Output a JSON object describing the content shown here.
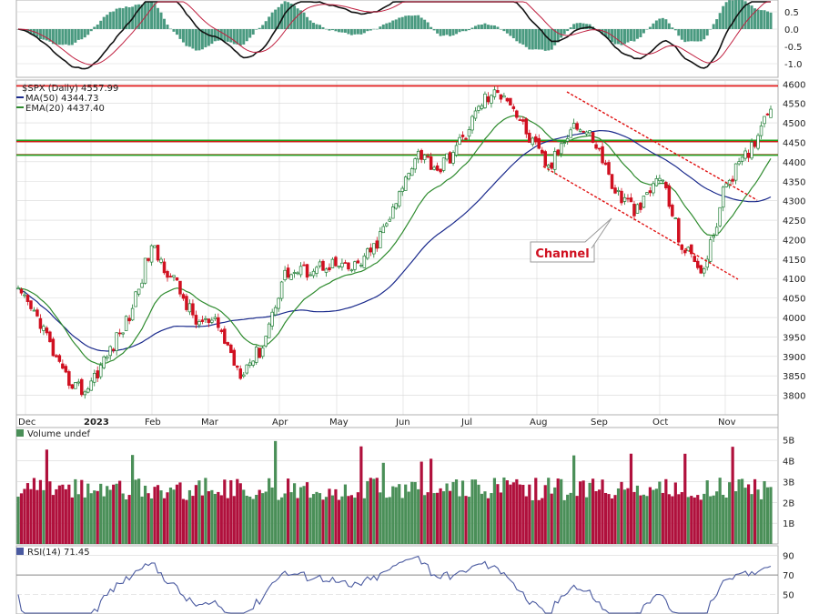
{
  "chart_data": {
    "type": "candlestick",
    "title": "$SPX (Daily) 4557.99",
    "legend": {
      "ma50": "MA(50) 4344.73",
      "ema20": "EMA(20) 4437.40"
    },
    "annotation": "Channel",
    "months": [
      "Dec",
      "2023",
      "Feb",
      "Mar",
      "Apr",
      "May",
      "Jun",
      "Jul",
      "Aug",
      "Sep",
      "Oct",
      "Nov"
    ],
    "price_ylim": [
      3750,
      4610
    ],
    "price_ticks": [
      "4600",
      "4550",
      "4500",
      "4450",
      "4400",
      "4350",
      "4300",
      "4250",
      "4200",
      "4150",
      "4100",
      "4050",
      "4000",
      "3950",
      "3900",
      "3850",
      "3800"
    ],
    "macd_ticks": [
      "0.5",
      "0.0",
      "-0.5",
      "-1.0"
    ],
    "volume_label": "Volume undef",
    "volume_ticks": [
      "5B",
      "4B",
      "3B",
      "2B",
      "1B"
    ],
    "rsi_label": "RSI(14) 71.45",
    "rsi_ticks": [
      "90",
      "70",
      "50"
    ],
    "horizontal_lines": [
      {
        "kind": "resistance",
        "value": 4595,
        "color": "#e01010"
      },
      {
        "kind": "resistance",
        "value": 4452,
        "color": "#e01010"
      },
      {
        "kind": "support",
        "value": 4418,
        "color": "#e01010"
      },
      {
        "kind": "green-upper",
        "value": 4455,
        "color": "#20a020"
      },
      {
        "kind": "green-lower",
        "value": 4417,
        "color": "#20a020"
      }
    ],
    "close_anchors": [
      [
        "Dec",
        4060
      ],
      [
        "Dec",
        3990
      ],
      [
        "Dec",
        3850
      ],
      [
        "2023",
        3810
      ],
      [
        "2023",
        3900
      ],
      [
        "2023",
        4000
      ],
      [
        "Feb",
        4180
      ],
      [
        "Feb",
        4100
      ],
      [
        "Feb",
        3990
      ],
      [
        "Mar",
        3980
      ],
      [
        "Mar",
        3860
      ],
      [
        "Mar",
        3920
      ],
      [
        "Apr",
        4110
      ],
      [
        "Apr",
        4120
      ],
      [
        "May",
        4140
      ],
      [
        "May",
        4120
      ],
      [
        "May",
        4170
      ],
      [
        "Jun",
        4280
      ],
      [
        "Jun",
        4430
      ],
      [
        "Jun",
        4380
      ],
      [
        "Jul",
        4450
      ],
      [
        "Jul",
        4560
      ],
      [
        "Aug",
        4580
      ],
      [
        "Aug",
        4470
      ],
      [
        "Aug",
        4380
      ],
      [
        "Sep",
        4500
      ],
      [
        "Sep",
        4460
      ],
      [
        "Sep",
        4320
      ],
      [
        "Oct",
        4270
      ],
      [
        "Oct",
        4370
      ],
      [
        "Oct",
        4180
      ],
      [
        "Oct",
        4120
      ],
      [
        "Nov",
        4350
      ],
      [
        "Nov",
        4420
      ],
      [
        "Nov",
        4555
      ]
    ],
    "colors": {
      "up": "#1e7d34",
      "down": "#d01020",
      "volume_up": "#4a8f58",
      "volume_down": "#b0103c",
      "ma50": "#1a2a8c",
      "ema20": "#2e8b2e",
      "macd_hist": "#4a9a80",
      "rsi_line": "#4a5aa0",
      "grid": "#d8d8d8"
    }
  }
}
